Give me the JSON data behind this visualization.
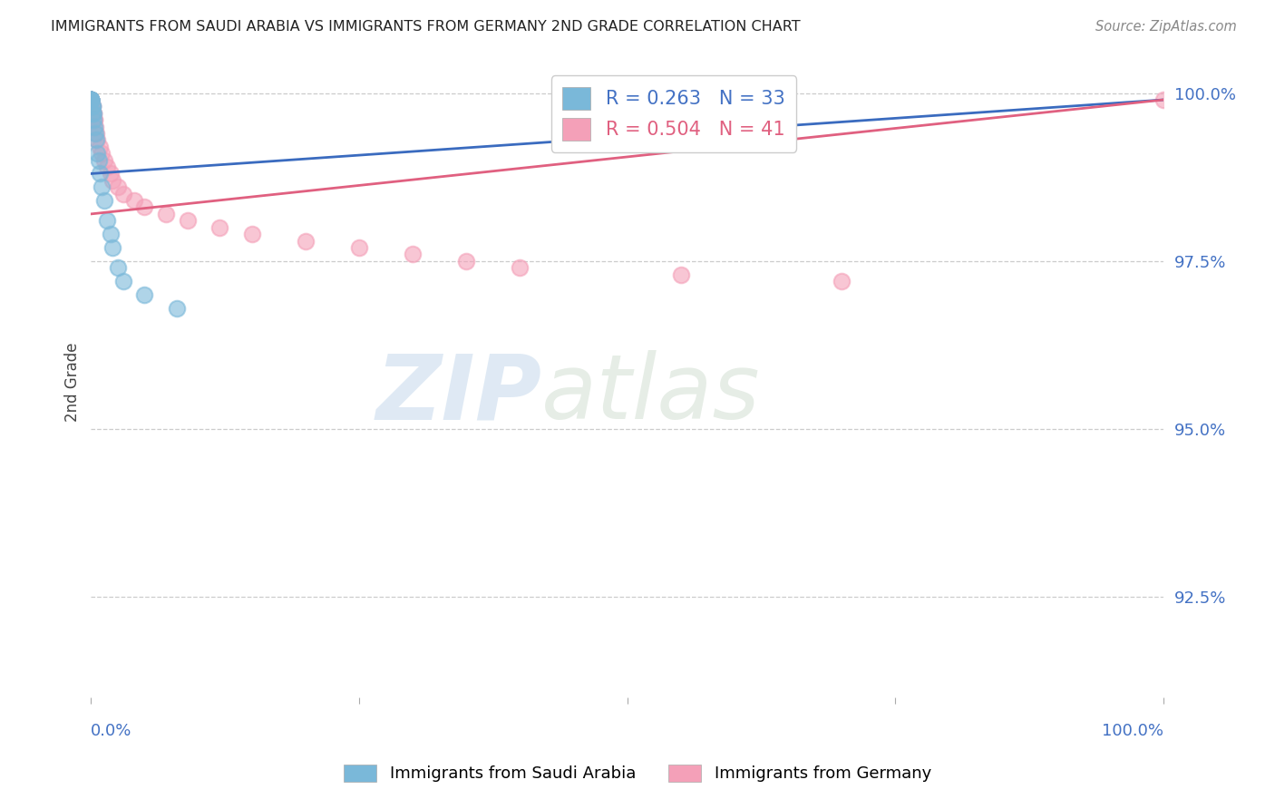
{
  "title": "IMMIGRANTS FROM SAUDI ARABIA VS IMMIGRANTS FROM GERMANY 2ND GRADE CORRELATION CHART",
  "source": "Source: ZipAtlas.com",
  "ylabel": "2nd Grade",
  "watermark_zip": "ZIP",
  "watermark_atlas": "atlas",
  "xlim": [
    0.0,
    1.0
  ],
  "ylim": [
    0.91,
    1.004
  ],
  "yticks": [
    0.925,
    0.95,
    0.975,
    1.0
  ],
  "ytick_labels": [
    "92.5%",
    "95.0%",
    "97.5%",
    "100.0%"
  ],
  "saudi_color": "#7ab8d9",
  "germany_color": "#f4a0b8",
  "saudi_line_color": "#3a6bbf",
  "germany_line_color": "#e06080",
  "R_saudi": 0.263,
  "N_saudi": 33,
  "R_germany": 0.504,
  "N_germany": 41,
  "legend_label_saudi": "Immigrants from Saudi Arabia",
  "legend_label_germany": "Immigrants from Germany",
  "saudi_x": [
    0.0,
    0.0,
    0.0,
    0.0,
    0.0,
    0.0,
    0.0,
    0.0,
    0.0,
    0.0,
    0.0,
    0.0,
    0.001,
    0.001,
    0.001,
    0.002,
    0.002,
    0.003,
    0.004,
    0.005,
    0.006,
    0.007,
    0.008,
    0.01,
    0.012,
    0.015,
    0.018,
    0.02,
    0.025,
    0.03,
    0.05,
    0.08,
    0.55
  ],
  "saudi_y": [
    0.999,
    0.999,
    0.999,
    0.999,
    0.999,
    0.999,
    0.999,
    0.999,
    0.999,
    0.999,
    0.999,
    0.999,
    0.998,
    0.998,
    0.997,
    0.997,
    0.996,
    0.995,
    0.994,
    0.993,
    0.991,
    0.99,
    0.988,
    0.986,
    0.984,
    0.981,
    0.979,
    0.977,
    0.974,
    0.972,
    0.97,
    0.968,
    0.999
  ],
  "germany_x": [
    0.0,
    0.0,
    0.0,
    0.0,
    0.0,
    0.0,
    0.0,
    0.0,
    0.0,
    0.0,
    0.001,
    0.001,
    0.002,
    0.002,
    0.003,
    0.003,
    0.004,
    0.005,
    0.006,
    0.008,
    0.01,
    0.012,
    0.015,
    0.018,
    0.02,
    0.025,
    0.03,
    0.04,
    0.05,
    0.07,
    0.09,
    0.12,
    0.15,
    0.2,
    0.25,
    0.3,
    0.35,
    0.4,
    0.55,
    0.7,
    1.0
  ],
  "germany_y": [
    0.999,
    0.999,
    0.999,
    0.999,
    0.999,
    0.999,
    0.999,
    0.999,
    0.999,
    0.999,
    0.998,
    0.998,
    0.997,
    0.997,
    0.996,
    0.996,
    0.995,
    0.994,
    0.993,
    0.992,
    0.991,
    0.99,
    0.989,
    0.988,
    0.987,
    0.986,
    0.985,
    0.984,
    0.983,
    0.982,
    0.981,
    0.98,
    0.979,
    0.978,
    0.977,
    0.976,
    0.975,
    0.974,
    0.973,
    0.972,
    0.999
  ]
}
